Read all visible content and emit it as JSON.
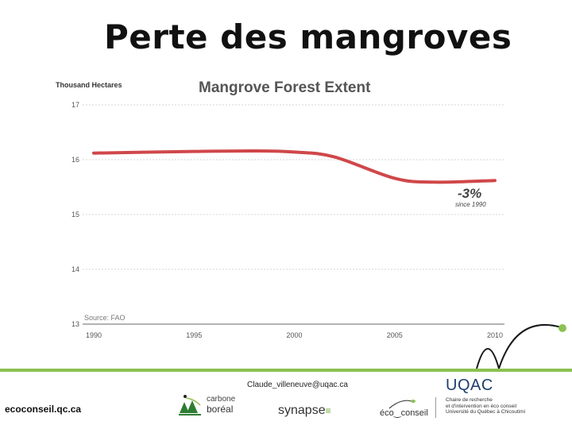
{
  "slide": {
    "title": "Perte des mangroves"
  },
  "chart_data": {
    "type": "line",
    "title": "Mangrove Forest Extent",
    "unit_label": "Thousand Hectares",
    "x": [
      1990,
      1995,
      1998,
      2000,
      2002,
      2005,
      2007,
      2010
    ],
    "ylim": [
      13,
      17
    ],
    "xticks": [
      "1990",
      "1995",
      "2000",
      "2005",
      "2010"
    ],
    "yticks": [
      "17",
      "16",
      "15",
      "14",
      "13"
    ],
    "grid": true,
    "series": [
      {
        "values": [
          16.12,
          16.15,
          16.16,
          16.14,
          16.05,
          15.66,
          15.59,
          15.62
        ],
        "color": "#d0474a"
      }
    ],
    "annotation": {
      "main": "-3%",
      "sub": "since 1990"
    },
    "source": "Source: FAO"
  },
  "footer": {
    "email": "Claude_villeneuve@uqac.ca",
    "eco_url": "ecoconseil.qc.ca",
    "accent_color": "#8cc152",
    "logos": {
      "carbone_line1": "carbone",
      "carbone_line2": "boréal",
      "synapse": "synapse",
      "ecoconseil": "éco‿conseil",
      "uqac_name": "UQAC",
      "uqac_sub": "Chaire de recherche\net d'intervention en éco conseil\nUniversité du Québec à Chicoutimi"
    }
  }
}
